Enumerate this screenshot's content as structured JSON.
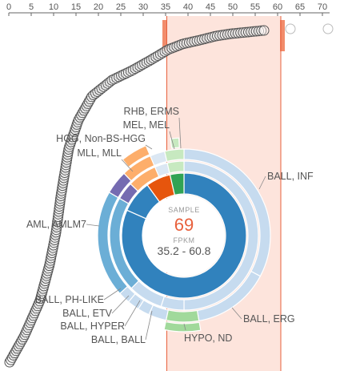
{
  "axis": {
    "ticks": [
      0,
      5,
      10,
      15,
      20,
      25,
      30,
      35,
      40,
      45,
      50,
      55,
      60,
      65,
      70
    ]
  },
  "selection": {
    "min": 35.2,
    "max": 60.8,
    "fill_color": "#fde4dc",
    "handle_color": "#f28c6b"
  },
  "center": {
    "sample_label": "SAMPLE",
    "count": "69",
    "fpkm_label": "FPKM",
    "range_text": "35.2 - 60.8",
    "count_color": "#e8603c"
  },
  "segment_labels": [
    {
      "text": "RHB, ERMS"
    },
    {
      "text": "MEL, MEL"
    },
    {
      "text": "HGG, Non-BS-HGG"
    },
    {
      "text": "MLL, MLL"
    },
    {
      "text": "BALL, INF"
    },
    {
      "text": "AML, AMLM7"
    },
    {
      "text": "BALL, PH-LIKE"
    },
    {
      "text": "BALL, ETV"
    },
    {
      "text": "BALL, HYPER"
    },
    {
      "text": "BALL, BALL"
    },
    {
      "text": "BALL, ERG"
    },
    {
      "text": "HYPO, ND"
    }
  ],
  "colors": {
    "ball": "#c6dbef",
    "aml_outer": "#6baed6",
    "aml_inner": "#6baed6",
    "core_blue": "#3182bd",
    "mll": "#756bb1",
    "hgg_outer": "#fdae6b",
    "hgg_mid": "#fdae6b",
    "hgg_inner": "#e6550d",
    "green_light": "#a1d99b",
    "green_mid": "#c7e9c0",
    "green_dark": "#31a354"
  }
}
